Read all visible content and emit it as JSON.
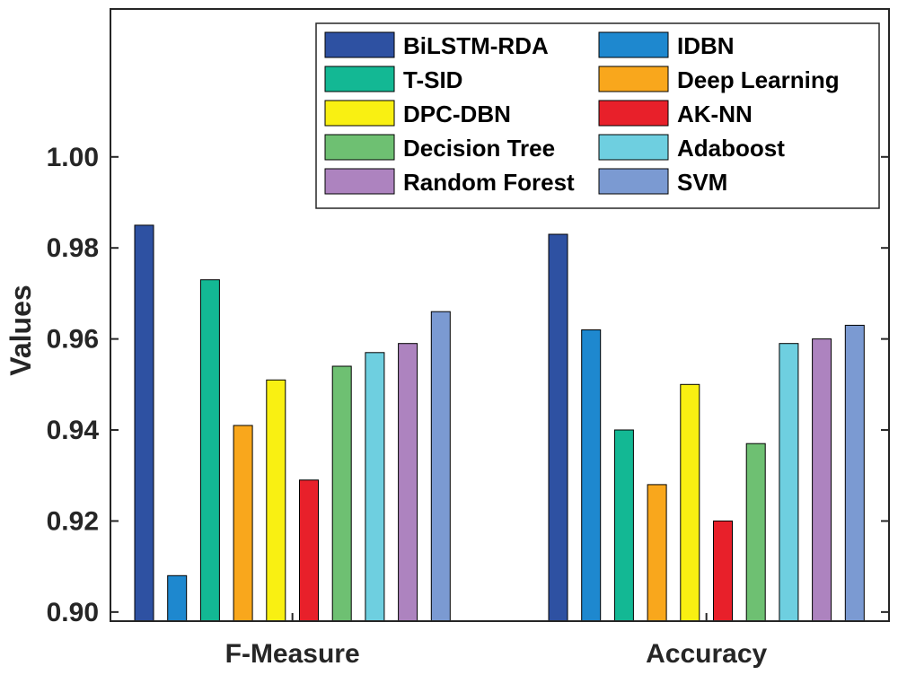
{
  "chart_data": {
    "type": "bar",
    "title": "",
    "xlabel": "",
    "ylabel": "Values",
    "ylim": [
      0.898,
      1.0325
    ],
    "yticks": [
      0.9,
      0.92,
      0.94,
      0.96,
      0.98,
      1.0
    ],
    "ytick_labels": [
      "0.90",
      "0.92",
      "0.94",
      "0.96",
      "0.98",
      "1.00"
    ],
    "categories": [
      "F-Measure",
      "Accuracy"
    ],
    "grid": false,
    "legend_position": "top-right",
    "series": [
      {
        "name": "BiLSTM-RDA",
        "color": "#2e51a2",
        "values": [
          0.985,
          0.983
        ]
      },
      {
        "name": "IDBN",
        "color": "#1e88cf",
        "values": [
          0.908,
          0.962
        ]
      },
      {
        "name": "T-SID",
        "color": "#13b894",
        "values": [
          0.973,
          0.94
        ]
      },
      {
        "name": "Deep Learning",
        "color": "#f9a71c",
        "values": [
          0.941,
          0.928
        ]
      },
      {
        "name": "DPC-DBN",
        "color": "#f9f012",
        "values": [
          0.951,
          0.95
        ]
      },
      {
        "name": "AK-NN",
        "color": "#e8202a",
        "values": [
          0.929,
          0.92
        ]
      },
      {
        "name": "Decision Tree",
        "color": "#6ec072",
        "values": [
          0.954,
          0.937
        ]
      },
      {
        "name": "Adaboost",
        "color": "#6ecfe0",
        "values": [
          0.957,
          0.959
        ]
      },
      {
        "name": "Random Forest",
        "color": "#ad83bf",
        "values": [
          0.959,
          0.96
        ]
      },
      {
        "name": "SVM",
        "color": "#7b9ad2",
        "values": [
          0.966,
          0.963
        ]
      }
    ]
  }
}
